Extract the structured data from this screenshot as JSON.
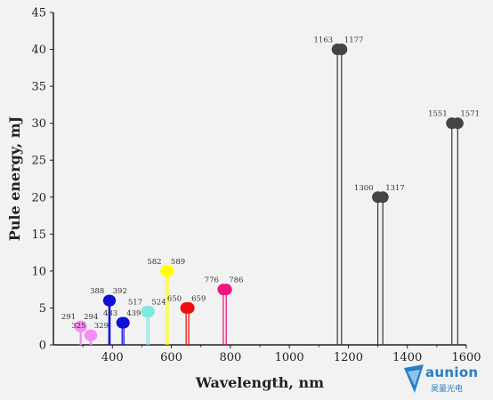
{
  "chart_data": {
    "type": "scatter",
    "xlabel": "Wavelength, nm",
    "ylabel": "Pule energy, mJ",
    "xlim": [
      200,
      1600
    ],
    "ylim": [
      0,
      45
    ],
    "xticks": [
      400,
      600,
      800,
      1000,
      1200,
      1400,
      1600
    ],
    "yticks": [
      0,
      5,
      10,
      15,
      20,
      25,
      30,
      35,
      40,
      45
    ],
    "grid": false,
    "groups": [
      {
        "x": [
          291,
          294
        ],
        "labels": [
          "291",
          "294"
        ],
        "y": 2.5,
        "color": "#f48cf4"
      },
      {
        "x": [
          325,
          329
        ],
        "labels": [
          "325",
          "329"
        ],
        "y": 1.3,
        "color": "#f48cf4"
      },
      {
        "x": [
          388,
          392
        ],
        "labels": [
          "388",
          "392"
        ],
        "y": 6.0,
        "color": "#1010d8"
      },
      {
        "x": [
          433,
          439
        ],
        "labels": [
          "433",
          "439"
        ],
        "y": 3.0,
        "color": "#1010d8"
      },
      {
        "x": [
          517,
          524
        ],
        "labels": [
          "517",
          "524"
        ],
        "y": 4.5,
        "color": "#7de8e0"
      },
      {
        "x": [
          582,
          589
        ],
        "labels": [
          "582",
          "589"
        ],
        "y": 10.0,
        "color": "#ffff00"
      },
      {
        "x": [
          650,
          659
        ],
        "labels": [
          "650",
          "659"
        ],
        "y": 5.0,
        "color": "#ee1010"
      },
      {
        "x": [
          776,
          786
        ],
        "labels": [
          "776",
          "786"
        ],
        "y": 7.5,
        "color": "#f0187c"
      },
      {
        "x": [
          1163,
          1177
        ],
        "labels": [
          "1163",
          "1177"
        ],
        "y": 40.0,
        "color": "#444444"
      },
      {
        "x": [
          1300,
          1317
        ],
        "labels": [
          "1300",
          "1317"
        ],
        "y": 20.0,
        "color": "#444444"
      },
      {
        "x": [
          1551,
          1571
        ],
        "labels": [
          "1551",
          "1571"
        ],
        "y": 30.0,
        "color": "#444444"
      }
    ]
  },
  "logo": {
    "text": "aunion",
    "sub": "昊量光电"
  }
}
